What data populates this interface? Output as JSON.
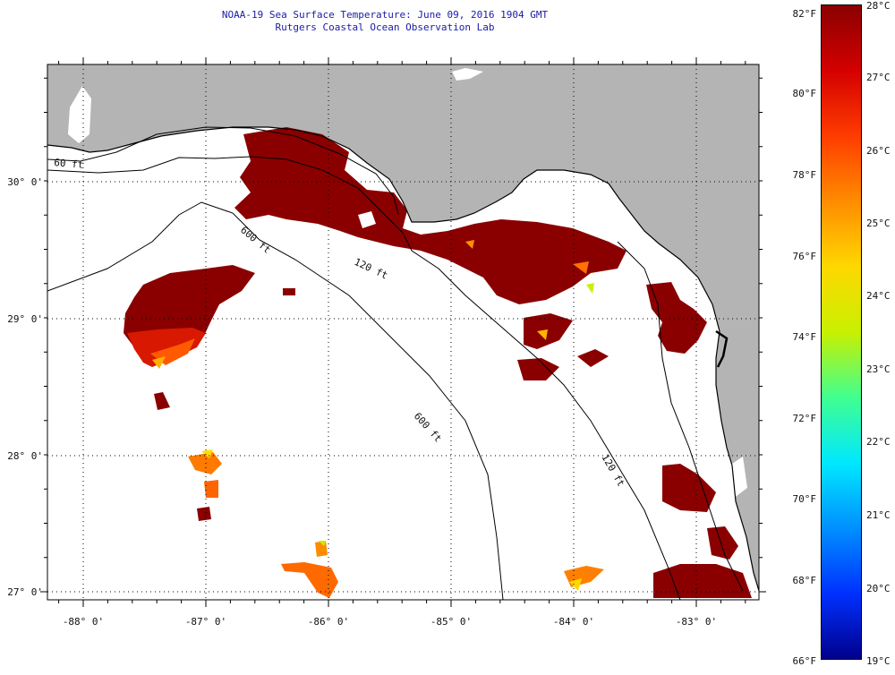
{
  "header": {
    "title": "NOAA-19 Sea Surface Temperature:  June 09, 2016 1904 GMT",
    "subtitle": "Rutgers Coastal Ocean Observation Lab"
  },
  "map": {
    "lat_labels": [
      "30° 0'",
      "29° 0'",
      "28° 0'",
      "27° 0'"
    ],
    "lon_labels": [
      "-88° 0'",
      "-87° 0'",
      "-86° 0'",
      "-85° 0'",
      "-84° 0'",
      "-83° 0'"
    ],
    "isobaths": [
      "60 ft",
      "120 ft",
      "600 ft",
      "600 ft",
      "120 ft"
    ],
    "colors": {
      "land": "#b4b4b4",
      "cloud": "#ffffff",
      "warm": "#8a0000",
      "coast": "#000000"
    }
  },
  "colorbar": {
    "f_labels": [
      "82°F",
      "80°F",
      "78°F",
      "76°F",
      "74°F",
      "72°F",
      "70°F",
      "68°F",
      "66°F"
    ],
    "c_labels": [
      "28°C",
      "27°C",
      "26°C",
      "25°C",
      "24°C",
      "23°C",
      "22°C",
      "21°C",
      "20°C",
      "19°C"
    ],
    "stops": [
      "#8a0000",
      "#d40000",
      "#ff3c00",
      "#ff8c00",
      "#ffd800",
      "#c8f000",
      "#40ff90",
      "#00e8ff",
      "#0090ff",
      "#0030ff",
      "#00008c"
    ]
  }
}
